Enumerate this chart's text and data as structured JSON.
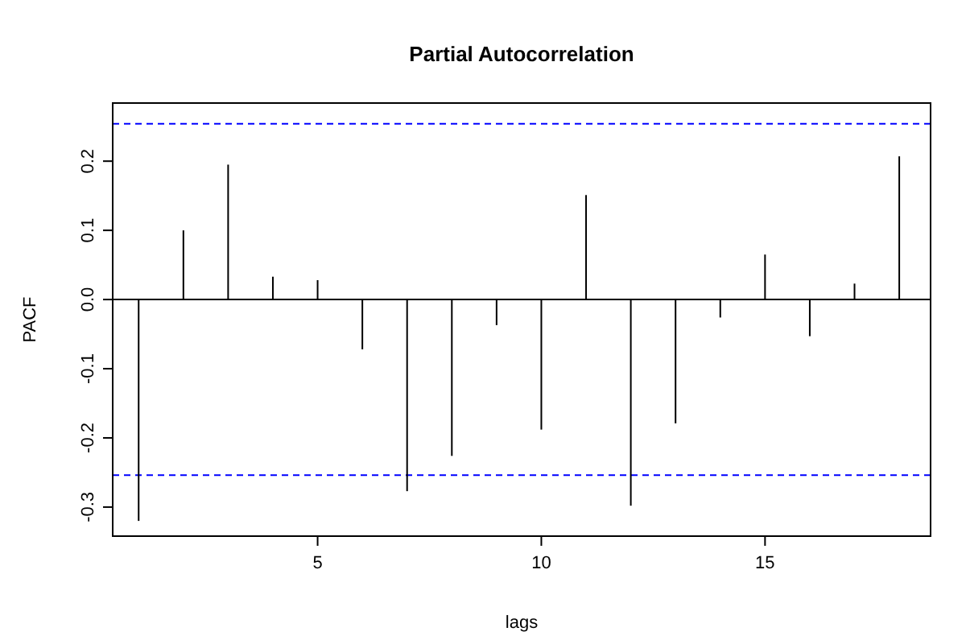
{
  "chart_data": {
    "type": "bar",
    "title": "Partial Autocorrelation",
    "xlabel": "lags",
    "ylabel": "PACF",
    "x": [
      1,
      2,
      3,
      4,
      5,
      6,
      7,
      8,
      9,
      10,
      11,
      12,
      13,
      14,
      15,
      16,
      17,
      18
    ],
    "values": [
      -0.32,
      0.1,
      0.195,
      0.033,
      0.028,
      -0.072,
      -0.277,
      -0.226,
      -0.037,
      -0.188,
      0.151,
      -0.298,
      -0.179,
      -0.026,
      0.065,
      -0.053,
      0.023,
      0.207
    ],
    "color": "#000000",
    "xlim": [
      0.42,
      18.7
    ],
    "ylim": [
      -0.342,
      0.284
    ],
    "xticks": [
      5,
      10,
      15
    ],
    "yticks": [
      {
        "value": -0.3,
        "label": "-0.3"
      },
      {
        "value": -0.2,
        "label": "-0.2"
      },
      {
        "value": -0.1,
        "label": "-0.1"
      },
      {
        "value": 0,
        "label": "0.0"
      },
      {
        "value": 0.1,
        "label": "0.1"
      },
      {
        "value": 0.2,
        "label": "0.2"
      }
    ],
    "ref_lines": [
      {
        "axis": "y",
        "value": 0,
        "color": "#000000",
        "line_style": "solid"
      },
      {
        "axis": "y",
        "value": 0.254,
        "color": "#0000ff",
        "line_style": "dashed"
      },
      {
        "axis": "y",
        "value": -0.254,
        "color": "#0000ff",
        "line_style": "dashed"
      }
    ]
  }
}
